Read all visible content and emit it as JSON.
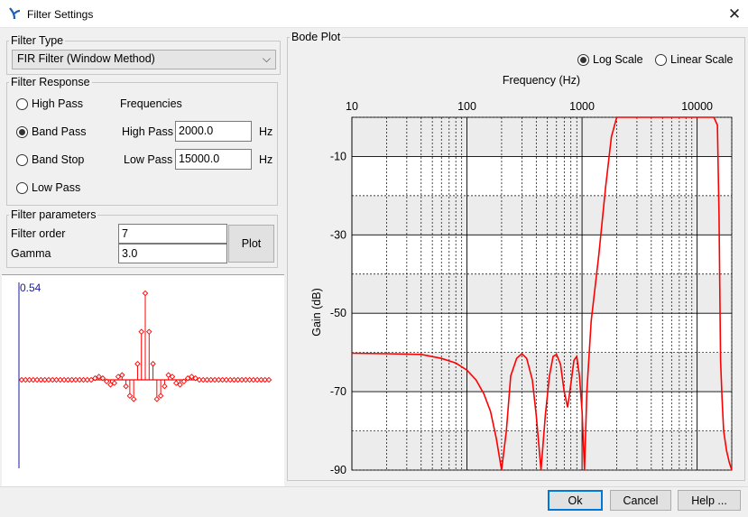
{
  "window": {
    "title": "Filter Settings",
    "close_glyph": "✕",
    "app_icon": "filter-app-icon"
  },
  "filter_type": {
    "legend": "Filter Type",
    "selected": "FIR Filter (Window Method)"
  },
  "filter_response": {
    "legend": "Filter Response",
    "options": [
      {
        "label": "High Pass",
        "checked": false
      },
      {
        "label": "Band Pass",
        "checked": true
      },
      {
        "label": "Band Stop",
        "checked": false
      },
      {
        "label": "Low Pass",
        "checked": false
      }
    ],
    "frequencies_label": "Frequencies",
    "high_pass_label": "High Pass",
    "high_pass_value": "2000.0",
    "low_pass_label": "Low Pass",
    "low_pass_value": "15000.0",
    "unit": "Hz"
  },
  "filter_parameters": {
    "legend": "Filter parameters",
    "order_label": "Filter order",
    "order_value": "7",
    "gamma_label": "Gamma",
    "gamma_value": "3.0",
    "plot_button": "Plot"
  },
  "tap_plot": {
    "peak_label": "0.54"
  },
  "bode": {
    "legend": "Bode Plot",
    "scale_options": [
      {
        "label": "Log Scale",
        "checked": true
      },
      {
        "label": "Linear Scale",
        "checked": false
      }
    ],
    "x_title": "Frequency (Hz)",
    "y_title": "Gain (dB)",
    "x_ticks": [
      "10",
      "100",
      "1000",
      "10000"
    ],
    "y_ticks": [
      "-10",
      "-30",
      "-50",
      "-70",
      "-90"
    ]
  },
  "buttons": {
    "ok": "Ok",
    "cancel": "Cancel",
    "help": "Help ..."
  },
  "colors": {
    "curve": "#ff0000",
    "tap_axis": "#1a1aa0",
    "plot_bg": "#ececec",
    "selection": "#0078d7"
  },
  "chart_data": [
    {
      "type": "line",
      "title": "",
      "xlabel": "Frequency (Hz)",
      "ylabel": "Gain (dB)",
      "xscale": "log",
      "xlim": [
        10,
        20000
      ],
      "ylim": [
        -90,
        0
      ],
      "grid": true,
      "series": [
        {
          "x": [
            10,
            20,
            40,
            60,
            80,
            100,
            120,
            140,
            160,
            180,
            200,
            220,
            240,
            270,
            300,
            330,
            370,
            400,
            440,
            480,
            520,
            560,
            600,
            650,
            700,
            750,
            800,
            850,
            900,
            950,
            1000,
            1050,
            1100,
            1200,
            1400,
            1600,
            1800,
            2000,
            2200,
            2500,
            3000,
            5000,
            8000,
            12000,
            14000,
            15000,
            15500,
            16000,
            16500,
            17000,
            18000,
            19000,
            20000
          ],
          "y": [
            -60.2,
            -60.3,
            -60.5,
            -61.5,
            -62.7,
            -64.5,
            -67,
            -70.5,
            -75,
            -82,
            -90,
            -80,
            -66,
            -61.5,
            -60.3,
            -61.5,
            -67,
            -76,
            -90,
            -76,
            -66,
            -61,
            -60.5,
            -63,
            -70,
            -74,
            -68,
            -62,
            -61,
            -66,
            -75,
            -90,
            -70,
            -52,
            -35,
            -18,
            -5,
            0,
            0,
            0,
            0,
            0,
            0,
            0,
            0,
            -2,
            -25,
            -62,
            -72,
            -80,
            -85,
            -88,
            -90
          ]
        }
      ]
    },
    {
      "type": "scatter",
      "title": "",
      "ylabel_max": 0.54,
      "x": [
        0,
        1,
        2,
        3,
        4,
        5,
        6,
        7,
        8,
        9,
        10,
        11,
        12,
        13,
        14,
        15,
        16,
        17,
        18,
        19,
        20,
        21,
        22,
        23,
        24,
        25,
        26,
        27,
        28,
        29,
        30,
        31,
        32,
        33,
        34,
        35,
        36,
        37,
        38,
        39,
        40,
        41,
        42,
        43,
        44,
        45,
        46,
        47,
        48,
        49,
        50,
        51,
        52,
        53,
        54,
        55,
        56,
        57,
        58,
        59,
        60,
        61,
        62,
        63,
        64
      ],
      "y": [
        0,
        0,
        0,
        0,
        0,
        0,
        0,
        0,
        0,
        0,
        0,
        0,
        0,
        0,
        0,
        0,
        0,
        0,
        0,
        0.01,
        0.02,
        0.01,
        -0.01,
        -0.03,
        -0.02,
        0.02,
        0.03,
        -0.04,
        -0.1,
        -0.12,
        0.1,
        0.3,
        0.54,
        0.3,
        0.1,
        -0.12,
        -0.1,
        -0.04,
        0.03,
        0.02,
        -0.02,
        -0.03,
        -0.01,
        0.01,
        0.02,
        0.01,
        0,
        0,
        0,
        0,
        0,
        0,
        0,
        0,
        0,
        0,
        0,
        0,
        0,
        0,
        0,
        0,
        0,
        0,
        0
      ]
    }
  ]
}
